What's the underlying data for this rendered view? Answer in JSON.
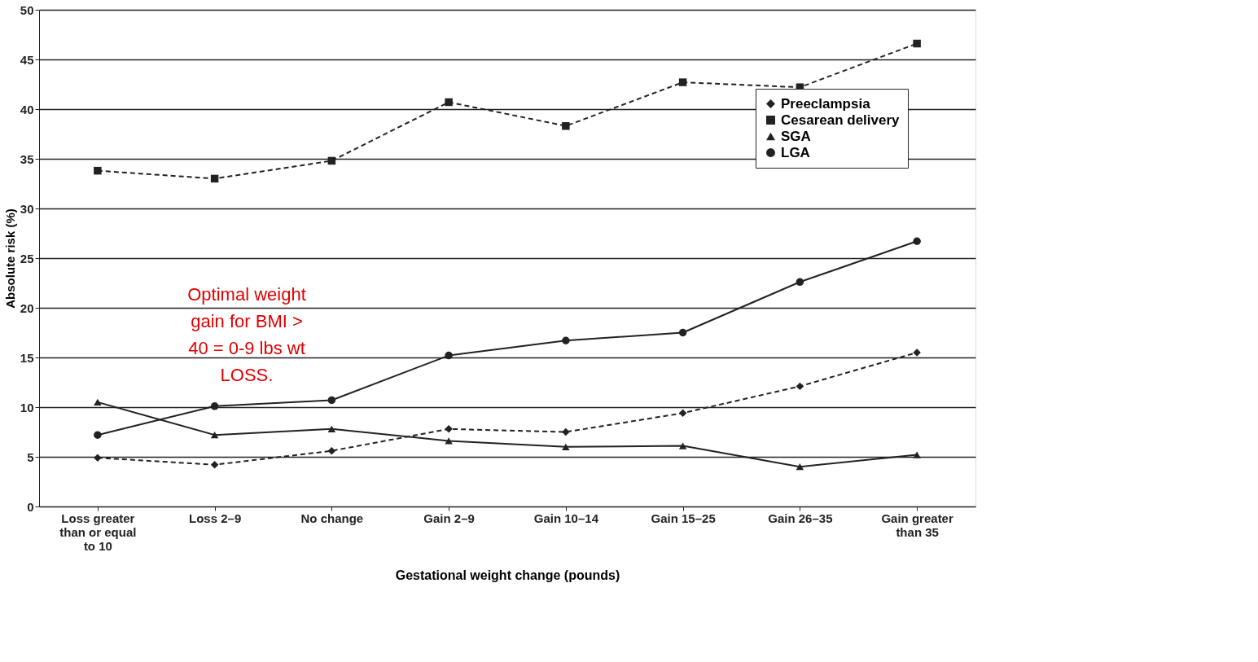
{
  "chart_data": {
    "type": "line",
    "xlabel": "Gestational weight change (pounds)",
    "ylabel": "Absolute risk (%)",
    "categories": [
      "Loss greater than or equal to 10",
      "Loss 2–9",
      "No change",
      "Gain 2–9",
      "Gain 10–14",
      "Gain 15–25",
      "Gain 26–35",
      "Gain greater than 35"
    ],
    "series": [
      {
        "name": "Preeclampsia",
        "color": "#222222",
        "marker": "diamond",
        "line_style": "dashed",
        "values": [
          4.9,
          4.2,
          5.6,
          7.8,
          7.5,
          9.4,
          12.1,
          15.5
        ]
      },
      {
        "name": "Cesarean delivery",
        "color": "#222222",
        "marker": "square",
        "line_style": "dashed",
        "values": [
          33.8,
          33.0,
          34.8,
          40.7,
          38.3,
          42.7,
          42.2,
          46.6
        ]
      },
      {
        "name": "SGA",
        "color": "#222222",
        "marker": "triangle",
        "line_style": "solid",
        "values": [
          10.5,
          7.2,
          7.8,
          6.6,
          6.0,
          6.1,
          4.0,
          5.2
        ]
      },
      {
        "name": "LGA",
        "color": "#222222",
        "marker": "circle",
        "line_style": "solid",
        "values": [
          7.2,
          10.1,
          10.7,
          15.2,
          16.7,
          17.5,
          22.6,
          26.7
        ]
      }
    ],
    "ylim": [
      0,
      50
    ],
    "yticks": [
      0,
      5,
      10,
      15,
      20,
      25,
      30,
      35,
      40,
      45,
      50
    ],
    "grid": "y",
    "legend": "top right",
    "annotations": [
      "Optimal weight gain for BMI > 40 = 0-9 lbs wt LOSS."
    ]
  }
}
